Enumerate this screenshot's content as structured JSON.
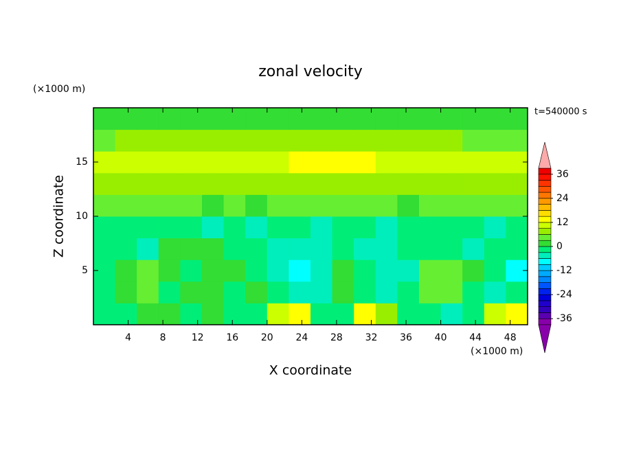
{
  "chart_data": {
    "type": "contourf",
    "title": "zonal velocity",
    "time_label": "t=540000 s",
    "x_label": "X coordinate",
    "y_label": "Z coordinate",
    "x_unit": "(×1000 m)",
    "y_unit": "(×1000 m)",
    "xlim": [
      0,
      50
    ],
    "ylim": [
      0,
      20
    ],
    "xticks": [
      4,
      8,
      12,
      16,
      20,
      24,
      28,
      32,
      36,
      40,
      44,
      48
    ],
    "yticks": [
      5,
      10,
      15
    ],
    "z": [
      [
        -1,
        -3,
        0,
        1,
        -1,
        0,
        -2,
        -1,
        11,
        13,
        -2,
        -3,
        12,
        6,
        -2,
        -3,
        -4,
        -2,
        11,
        13
      ],
      [
        -3,
        1,
        3,
        -2,
        1,
        2,
        -1,
        0,
        -2,
        -6,
        -5,
        2,
        -3,
        -4,
        -2,
        3,
        4,
        -1,
        -5,
        -3
      ],
      [
        -2,
        2,
        4,
        2,
        -1,
        1,
        2,
        -3,
        -5,
        -7,
        -4,
        1,
        -3,
        -5,
        -4,
        4,
        5,
        2,
        -3,
        -7
      ],
      [
        -3,
        -2,
        -4,
        1,
        2,
        1,
        -2,
        -3,
        -4,
        -5,
        -4,
        -3,
        -5,
        -4,
        -3,
        -2,
        -3,
        -4,
        -2,
        -3
      ],
      [
        -2,
        -3,
        -3,
        -2,
        -3,
        -4,
        -3,
        -4,
        -3,
        -3,
        -4,
        -2,
        -3,
        -4,
        -3,
        -3,
        -2,
        -3,
        -4,
        -3
      ],
      [
        4,
        4,
        3,
        4,
        3,
        2,
        3,
        2,
        3,
        4,
        4,
        4,
        3,
        3,
        2,
        3,
        3,
        4,
        3,
        3
      ],
      [
        7,
        7,
        7,
        7,
        8,
        8,
        8,
        8,
        8,
        7,
        7,
        7,
        8,
        8,
        8,
        7,
        7,
        7,
        7,
        7
      ],
      [
        10,
        10,
        11,
        10,
        10,
        10,
        10,
        11,
        11,
        12,
        13,
        13,
        12,
        11,
        10,
        10,
        10,
        10,
        10,
        10
      ],
      [
        5,
        6,
        7,
        7,
        8,
        8,
        8,
        8,
        7,
        7,
        7,
        7,
        8,
        7,
        7,
        6,
        6,
        5,
        5,
        5
      ],
      [
        2,
        2,
        1,
        2,
        2,
        2,
        2,
        2,
        2,
        2,
        2,
        2,
        2,
        2,
        2,
        1,
        2,
        2,
        2,
        1
      ]
    ],
    "clevels": [
      -39,
      -36,
      -33,
      -30,
      -27,
      -24,
      -21,
      -18,
      -15,
      -12,
      -9,
      -6,
      -3,
      0,
      3,
      6,
      9,
      12,
      15,
      18,
      21,
      24,
      27,
      30,
      33,
      36,
      39
    ],
    "colors": [
      "#8800aa",
      "#5a00b0",
      "#3300bb",
      "#2000cc",
      "#0000dd",
      "#0022ee",
      "#0055ff",
      "#0088ff",
      "#00aaff",
      "#00ccff",
      "#00ffff",
      "#00eebb",
      "#00ee77",
      "#33dd33",
      "#66ee33",
      "#99ee00",
      "#ccff00",
      "#ffff00",
      "#ffdd00",
      "#ffbb00",
      "#ff9900",
      "#ff7700",
      "#ff5500",
      "#ff3300",
      "#ff1100",
      "#ee0000"
    ],
    "extend_colors": [
      "#8800aa",
      "#ffaaaa"
    ],
    "cticks": [
      -36,
      -24,
      -12,
      0,
      12,
      24,
      36
    ]
  }
}
